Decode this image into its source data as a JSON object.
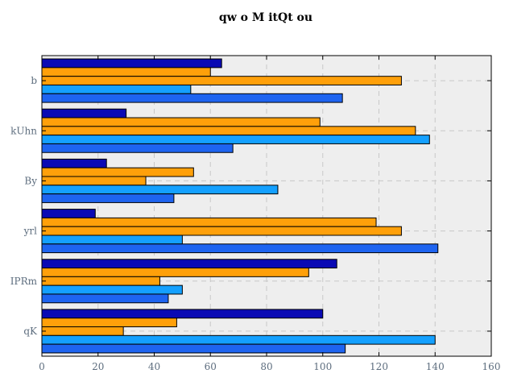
{
  "chart_data": {
    "type": "bar",
    "orientation": "horizontal",
    "title": "qw o M itQt ou",
    "xlabel": "",
    "ylabel": "",
    "categories": [
      "b",
      "kUhn",
      "By",
      "yrl",
      "IPRm",
      "qK"
    ],
    "xlim": [
      0,
      160
    ],
    "xticks": [
      0,
      20,
      40,
      60,
      80,
      100,
      120,
      140,
      160
    ],
    "grid": true,
    "series": [
      {
        "color": "#0a0ab4",
        "values": [
          64,
          30,
          23,
          19,
          105,
          100
        ]
      },
      {
        "color": "#ffa00a",
        "values": [
          60,
          99,
          54,
          119,
          95,
          48
        ]
      },
      {
        "color": "#ffa00a",
        "values": [
          128,
          133,
          37,
          128,
          42,
          29
        ]
      },
      {
        "color": "#14a0ff",
        "values": [
          53,
          138,
          84,
          50,
          50,
          140
        ]
      },
      {
        "color": "#1e64f0",
        "values": [
          107,
          68,
          47,
          141,
          45,
          108
        ]
      }
    ],
    "colors": {
      "plot_background": "#eeeeee",
      "bar_edge": "#000000"
    }
  }
}
